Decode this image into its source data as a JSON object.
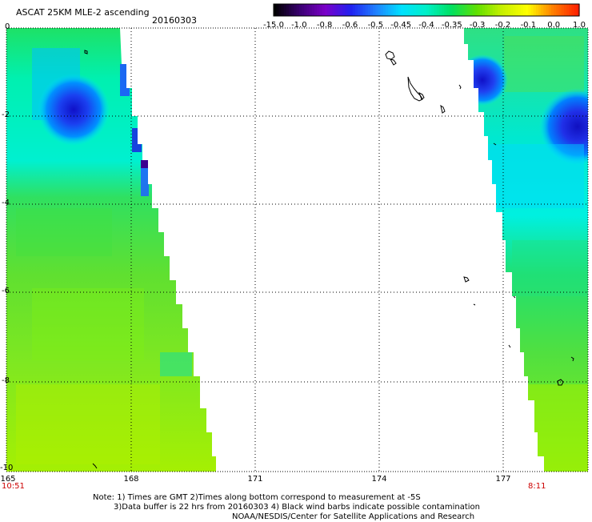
{
  "header": {
    "title": "ASCAT 25KM MLE-2 ascending",
    "date": "20160303"
  },
  "colorbar": {
    "labels": [
      "-15.0",
      "-1.0",
      "-0.8",
      "-0.6",
      "-0.5",
      "-0.45",
      "-0.4",
      "-0.35",
      "-0.3",
      "-0.2",
      "-0.1",
      "0.0",
      "1.0"
    ],
    "colors": [
      "#000000",
      "#3a0072",
      "#7b00c8",
      "#2020f0",
      "#2080ff",
      "#00e0ff",
      "#00f0c8",
      "#00e060",
      "#60e000",
      "#c8f000",
      "#ffff00",
      "#ff8000",
      "#ff2000"
    ]
  },
  "axes": {
    "lat_labels": [
      "0",
      "-2",
      "-4",
      "-6",
      "-8",
      "-10"
    ],
    "lon_labels": [
      "165",
      "168",
      "171",
      "174",
      "177"
    ]
  },
  "times": {
    "left": "10:51",
    "right": "8:11"
  },
  "footer": {
    "line1": "Note: 1) Times are GMT 2)Times along bottom correspond to measurement at -5S",
    "line2": "3)Data buffer is 22 hrs from 20160303 4) Black wind barbs indicate possible contamination",
    "line3": "NOAA/NESDIS/Center for Satellite Applications and Research"
  },
  "palette": {
    "land_ocean_bg": "#ffffff",
    "swath_deep": "#1010c8",
    "swath_blue": "#0090ff",
    "swath_cyan": "#00f0e0",
    "swath_green": "#20e060",
    "swath_lime": "#a8f000",
    "island_outline": "#000000",
    "grid_line": "#000000"
  }
}
